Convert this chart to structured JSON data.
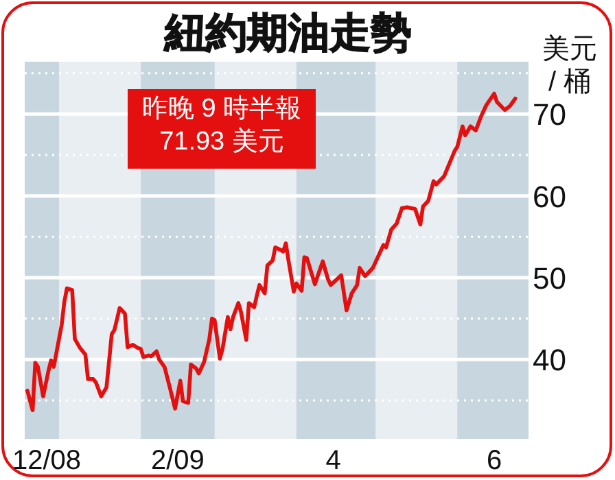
{
  "chart_data": {
    "type": "line",
    "title": "紐約期油走勢",
    "ylabel": "美元 / 桶",
    "annotations": [
      "昨晚 9 時半報\n71.93 美元"
    ],
    "x": [
      "2008-12-20",
      "2008-12-22",
      "2008-12-23",
      "2008-12-24",
      "2008-12-26",
      "2008-12-28",
      "2008-12-29",
      "2008-12-30",
      "2009-01-02",
      "2009-01-03",
      "2009-01-04",
      "2009-01-06",
      "2009-01-07",
      "2009-01-09",
      "2009-01-11",
      "2009-01-12",
      "2009-01-14",
      "2009-01-15",
      "2009-01-17",
      "2009-01-19",
      "2009-01-21",
      "2009-01-22",
      "2009-01-24",
      "2009-01-26",
      "2009-01-27",
      "2009-01-29",
      "2009-01-31",
      "2009-02-01",
      "2009-02-02",
      "2009-02-04",
      "2009-02-05",
      "2009-02-07",
      "2009-02-08",
      "2009-02-10",
      "2009-02-12",
      "2009-02-14",
      "2009-02-16",
      "2009-02-17",
      "2009-02-19",
      "2009-02-20",
      "2009-02-22",
      "2009-02-23",
      "2009-02-25",
      "2009-02-27",
      "2009-02-28",
      "2009-03-01",
      "2009-03-03",
      "2009-03-04",
      "2009-03-06",
      "2009-03-07",
      "2009-03-08",
      "2009-03-10",
      "2009-03-11",
      "2009-03-13",
      "2009-03-14",
      "2009-03-16",
      "2009-03-17",
      "2009-03-18",
      "2009-03-20",
      "2009-03-21",
      "2009-03-23",
      "2009-03-24",
      "2009-03-26",
      "2009-03-27",
      "2009-03-28",
      "2009-03-29",
      "2009-03-31",
      "2009-04-01",
      "2009-04-03",
      "2009-04-04",
      "2009-04-05",
      "2009-04-08",
      "2009-04-11",
      "2009-04-13",
      "2009-04-14",
      "2009-04-18",
      "2009-04-20",
      "2009-04-22",
      "2009-04-24",
      "2009-04-25",
      "2009-04-27",
      "2009-04-28",
      "2009-04-30",
      "2009-05-04",
      "2009-05-05",
      "2009-05-07",
      "2009-05-09",
      "2009-05-11",
      "2009-05-13",
      "2009-05-16",
      "2009-05-18",
      "2009-05-19",
      "2009-05-21",
      "2009-05-23",
      "2009-05-24",
      "2009-05-27",
      "2009-05-31",
      "2009-06-01",
      "2009-06-03",
      "2009-06-04",
      "2009-06-06",
      "2009-06-08",
      "2009-06-10",
      "2009-06-12",
      "2009-06-15",
      "2009-06-16",
      "2009-06-19",
      "2009-06-21",
      "2009-06-23"
    ],
    "series": [
      {
        "color": "#e4100f",
        "values": [
          36.2,
          33.8,
          39.6,
          39.1,
          35.5,
          38.6,
          39.9,
          39.1,
          44.2,
          47.0,
          48.7,
          48.5,
          42.5,
          41.4,
          40.6,
          37.6,
          37.6,
          37.2,
          35.5,
          36.6,
          43.1,
          43.6,
          46.3,
          45.6,
          41.5,
          41.8,
          41.4,
          41.3,
          40.3,
          40.5,
          40.4,
          41.0,
          40.0,
          39.1,
          36.6,
          34.0,
          37.4,
          34.9,
          34.7,
          39.4,
          38.9,
          38.3,
          39.7,
          42.5,
          45.0,
          44.8,
          40.1,
          41.3,
          45.2,
          43.7,
          45.2,
          46.9,
          45.8,
          42.4,
          46.9,
          46.4,
          47.8,
          49.1,
          48.1,
          51.5,
          52.1,
          53.7,
          53.4,
          53.2,
          54.2,
          52.1,
          48.3,
          49.3,
          48.4,
          52.5,
          52.4,
          49.2,
          52.0,
          49.8,
          49.1,
          50.3,
          46.0,
          48.1,
          49.1,
          51.2,
          50.2,
          50.5,
          51.2,
          54.0,
          53.7,
          55.9,
          56.6,
          58.5,
          58.6,
          58.4,
          56.5,
          58.7,
          59.4,
          61.8,
          61.4,
          62.4,
          65.5,
          66.0,
          68.5,
          67.4,
          68.5,
          68.0,
          69.7,
          71.1,
          72.5,
          71.5,
          70.5,
          71.0,
          71.9
        ]
      }
    ],
    "xlim": [
      "2008-12-19",
      "2009-06-28"
    ],
    "xticks": [
      {
        "value": "2008-12-25",
        "label": "12/08"
      },
      {
        "value": "2009-02-15",
        "label": "2/09"
      },
      {
        "value": "2009-04-15",
        "label": "4"
      },
      {
        "value": "2009-06-15",
        "label": "6"
      }
    ],
    "ylim": [
      30.3,
      76.4
    ],
    "yticks": [
      {
        "value": 35,
        "label": null
      },
      40,
      {
        "value": 45,
        "label": null
      },
      50,
      {
        "value": 55,
        "label": null
      },
      60,
      {
        "value": 65,
        "label": null
      },
      70,
      {
        "value": 75,
        "label": null
      }
    ],
    "grid": "y",
    "marker": "none",
    "line_style": "solid",
    "bands": [
      {
        "axis": "x",
        "from": "2008-12-19",
        "to": "2009-01-01",
        "color": "#c8d6df"
      },
      {
        "axis": "x",
        "from": "2009-02-01",
        "to": "2009-03-01",
        "color": "#c8d6df"
      },
      {
        "axis": "x",
        "from": "2009-04-01",
        "to": "2009-05-01",
        "color": "#c8d6df"
      },
      {
        "axis": "x",
        "from": "2009-06-01",
        "to": "2009-06-28",
        "color": "#c8d6df"
      }
    ]
  }
}
